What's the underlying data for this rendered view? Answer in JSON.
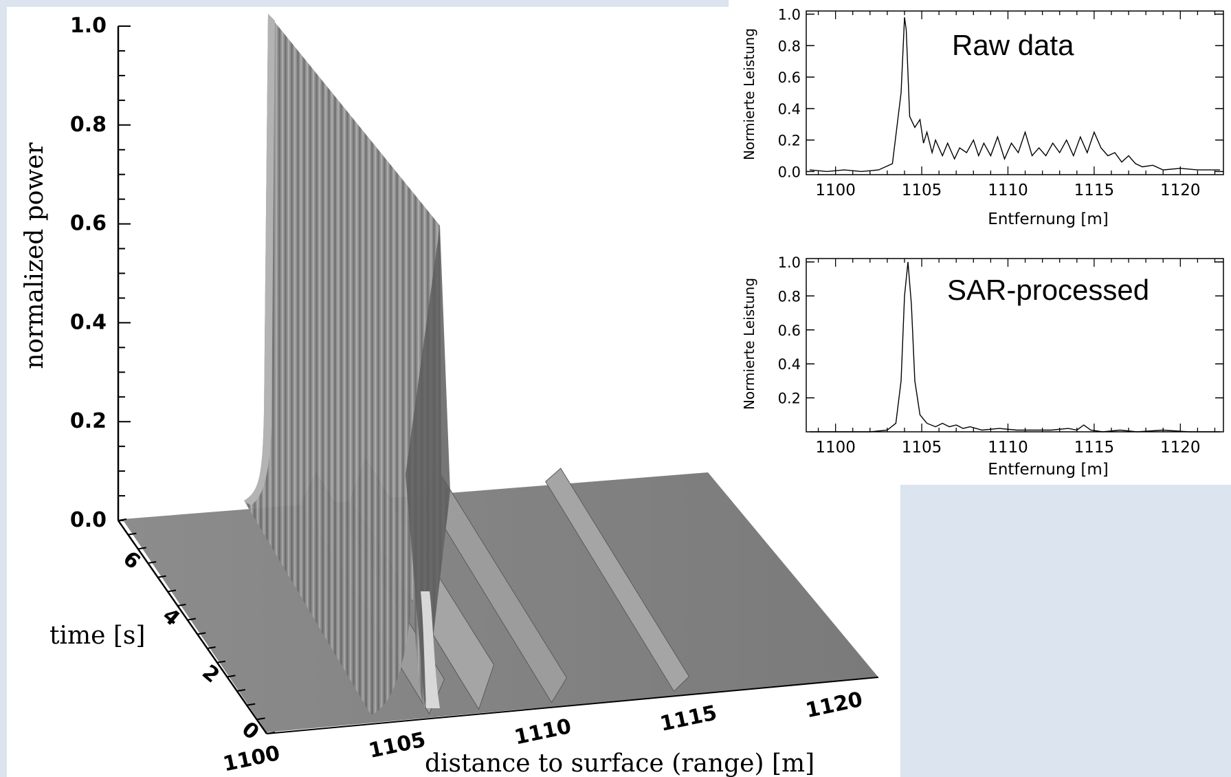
{
  "chart_data": [
    {
      "type": "surface3d",
      "title": "",
      "ylabel": "normalized power",
      "xlabel": "distance to surface (range) [m]",
      "zlabel": "time [s]",
      "z_ticks": [
        "0.0",
        "0.2",
        "0.4",
        "0.6",
        "0.8",
        "1.0"
      ],
      "x_ticks": [
        "1100",
        "1105",
        "1110",
        "1115",
        "1120"
      ],
      "time_ticks": [
        "0",
        "2",
        "4",
        "6"
      ],
      "xlim": [
        1100,
        1121
      ],
      "time_range": [
        0,
        7.5
      ],
      "peak_range": 1104.2,
      "peak_power_start": 1.0,
      "peak_power_end": 0.6,
      "secondary_ridges_range": [
        1106.1,
        1107.8,
        1110.3,
        1114.5
      ],
      "secondary_ridges_power": [
        0.07,
        0.09,
        0.05,
        0.03
      ]
    },
    {
      "type": "line",
      "annotation": "Raw data",
      "xlabel": "Entfernung [m]",
      "ylabel": "Normierte Leistung",
      "x_ticks": [
        "1100",
        "1105",
        "1110",
        "1115",
        "1120"
      ],
      "y_ticks": [
        "0.0",
        "0.2",
        "0.4",
        "0.6",
        "0.8",
        "1.0"
      ],
      "xlim": [
        1098.3,
        1122.5
      ],
      "ylim": [
        -0.02,
        1.02
      ],
      "x": [
        1098.5,
        1099.5,
        1100.5,
        1101.5,
        1102.5,
        1103.3,
        1103.8,
        1104.0,
        1104.1,
        1104.3,
        1104.6,
        1104.9,
        1105.1,
        1105.3,
        1105.6,
        1105.8,
        1106.2,
        1106.5,
        1106.9,
        1107.2,
        1107.6,
        1108.0,
        1108.3,
        1108.6,
        1109.0,
        1109.4,
        1109.8,
        1110.2,
        1110.6,
        1111.0,
        1111.4,
        1111.8,
        1112.2,
        1112.6,
        1113.0,
        1113.4,
        1113.8,
        1114.2,
        1114.6,
        1115.0,
        1115.4,
        1115.8,
        1116.2,
        1116.6,
        1117.0,
        1117.4,
        1117.8,
        1118.4,
        1119.0,
        1120.0,
        1121.0,
        1122.3
      ],
      "y": [
        0.01,
        0.0,
        0.01,
        0.0,
        0.01,
        0.05,
        0.5,
        0.98,
        0.9,
        0.35,
        0.28,
        0.33,
        0.18,
        0.25,
        0.12,
        0.2,
        0.1,
        0.18,
        0.08,
        0.15,
        0.12,
        0.2,
        0.1,
        0.18,
        0.1,
        0.22,
        0.08,
        0.18,
        0.12,
        0.25,
        0.1,
        0.15,
        0.1,
        0.18,
        0.12,
        0.2,
        0.1,
        0.22,
        0.12,
        0.25,
        0.15,
        0.1,
        0.12,
        0.06,
        0.1,
        0.05,
        0.03,
        0.04,
        0.01,
        0.02,
        0.01,
        0.01
      ]
    },
    {
      "type": "line",
      "annotation": "SAR-processed",
      "xlabel": "Entfernung [m]",
      "ylabel": "Normierte Leistung",
      "x_ticks": [
        "1100",
        "1105",
        "1110",
        "1115",
        "1120"
      ],
      "y_ticks": [
        "0.2",
        "0.4",
        "0.6",
        "0.8",
        "1.0"
      ],
      "xlim": [
        1098.3,
        1122.5
      ],
      "ylim": [
        0.0,
        1.02
      ],
      "x": [
        1098.5,
        1100.0,
        1102.0,
        1103.0,
        1103.5,
        1103.8,
        1104.0,
        1104.2,
        1104.4,
        1104.6,
        1104.9,
        1105.3,
        1105.8,
        1106.2,
        1106.6,
        1107.0,
        1107.4,
        1107.8,
        1108.5,
        1109.5,
        1110.5,
        1111.5,
        1112.5,
        1113.5,
        1114.0,
        1114.4,
        1114.8,
        1115.5,
        1116.5,
        1117.5,
        1119.0,
        1120.5,
        1122.3
      ],
      "y": [
        0.0,
        0.0,
        0.0,
        0.01,
        0.05,
        0.3,
        0.8,
        1.0,
        0.75,
        0.3,
        0.1,
        0.05,
        0.03,
        0.05,
        0.03,
        0.04,
        0.02,
        0.03,
        0.01,
        0.02,
        0.01,
        0.01,
        0.01,
        0.02,
        0.01,
        0.04,
        0.01,
        0.0,
        0.01,
        0.0,
        0.01,
        0.0,
        0.0
      ]
    }
  ]
}
